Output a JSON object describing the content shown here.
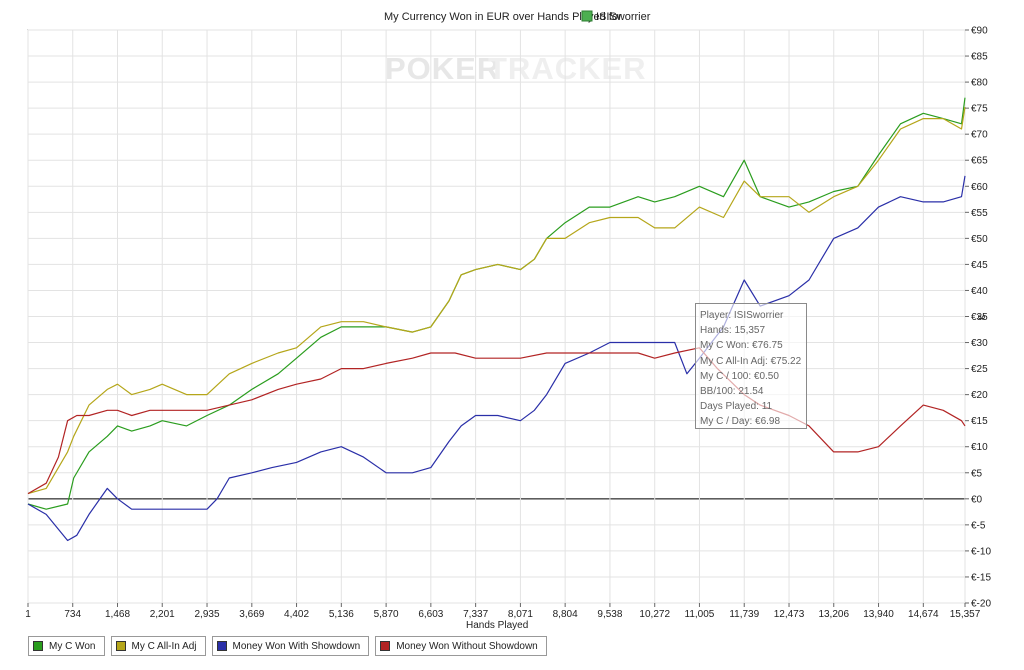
{
  "chart_data": {
    "type": "line",
    "title": "My Currency Won in EUR over Hands Played for",
    "player": "ISISworrier",
    "xlabel": "Hands Played",
    "ylabel": "€",
    "watermark": {
      "part1": "POKER",
      "part2": "TRACKER"
    },
    "xlim": [
      1,
      15357
    ],
    "ylim": [
      -20,
      90
    ],
    "x_ticks": [
      "1",
      "734",
      "1,468",
      "2,201",
      "2,935",
      "3,669",
      "4,402",
      "5,136",
      "5,870",
      "6,603",
      "7,337",
      "8,071",
      "8,804",
      "9,538",
      "10,272",
      "11,005",
      "11,739",
      "12,473",
      "13,206",
      "13,940",
      "14,674",
      "15,357"
    ],
    "y_ticks": [
      "€90",
      "€85",
      "€80",
      "€75",
      "€70",
      "€65",
      "€60",
      "€55",
      "€50",
      "€45",
      "€40",
      "€35",
      "€30",
      "€25",
      "€20",
      "€15",
      "€10",
      "€5",
      "€0",
      "€-5",
      "€-10",
      "€-15",
      "€-20"
    ],
    "grid": true,
    "legend_position": "bottom",
    "series": [
      {
        "name": "My C Won",
        "color": "#2a9d1e",
        "points": [
          [
            1,
            -1
          ],
          [
            300,
            -2
          ],
          [
            650,
            -1
          ],
          [
            750,
            4
          ],
          [
            1000,
            9
          ],
          [
            1300,
            12
          ],
          [
            1468,
            14
          ],
          [
            1700,
            13
          ],
          [
            2000,
            14
          ],
          [
            2201,
            15
          ],
          [
            2600,
            14
          ],
          [
            2935,
            16
          ],
          [
            3300,
            18
          ],
          [
            3669,
            21
          ],
          [
            4100,
            24
          ],
          [
            4402,
            27
          ],
          [
            4800,
            31
          ],
          [
            5136,
            33
          ],
          [
            5500,
            33
          ],
          [
            5870,
            33
          ],
          [
            6300,
            32
          ],
          [
            6603,
            33
          ],
          [
            6900,
            38
          ],
          [
            7100,
            43
          ],
          [
            7337,
            44
          ],
          [
            7700,
            45
          ],
          [
            8071,
            44
          ],
          [
            8300,
            46
          ],
          [
            8500,
            50
          ],
          [
            8804,
            53
          ],
          [
            9200,
            56
          ],
          [
            9538,
            56
          ],
          [
            10000,
            58
          ],
          [
            10272,
            57
          ],
          [
            10600,
            58
          ],
          [
            11005,
            60
          ],
          [
            11400,
            58
          ],
          [
            11739,
            65
          ],
          [
            12000,
            58
          ],
          [
            12473,
            56
          ],
          [
            12800,
            57
          ],
          [
            13206,
            59
          ],
          [
            13600,
            60
          ],
          [
            13940,
            66
          ],
          [
            14300,
            72
          ],
          [
            14674,
            74
          ],
          [
            15000,
            73
          ],
          [
            15300,
            72
          ],
          [
            15357,
            77
          ]
        ]
      },
      {
        "name": "My C All-In Adj",
        "color": "#b5a61a",
        "points": [
          [
            1,
            1
          ],
          [
            300,
            2
          ],
          [
            650,
            9
          ],
          [
            750,
            12
          ],
          [
            1000,
            18
          ],
          [
            1300,
            21
          ],
          [
            1468,
            22
          ],
          [
            1700,
            20
          ],
          [
            2000,
            21
          ],
          [
            2201,
            22
          ],
          [
            2600,
            20
          ],
          [
            2935,
            20
          ],
          [
            3300,
            24
          ],
          [
            3669,
            26
          ],
          [
            4100,
            28
          ],
          [
            4402,
            29
          ],
          [
            4800,
            33
          ],
          [
            5136,
            34
          ],
          [
            5500,
            34
          ],
          [
            5870,
            33
          ],
          [
            6300,
            32
          ],
          [
            6603,
            33
          ],
          [
            6900,
            38
          ],
          [
            7100,
            43
          ],
          [
            7337,
            44
          ],
          [
            7700,
            45
          ],
          [
            8071,
            44
          ],
          [
            8300,
            46
          ],
          [
            8500,
            50
          ],
          [
            8804,
            50
          ],
          [
            9200,
            53
          ],
          [
            9538,
            54
          ],
          [
            10000,
            54
          ],
          [
            10272,
            52
          ],
          [
            10600,
            52
          ],
          [
            11005,
            56
          ],
          [
            11400,
            54
          ],
          [
            11739,
            61
          ],
          [
            12000,
            58
          ],
          [
            12473,
            58
          ],
          [
            12800,
            55
          ],
          [
            13206,
            58
          ],
          [
            13600,
            60
          ],
          [
            13940,
            65
          ],
          [
            14300,
            71
          ],
          [
            14674,
            73
          ],
          [
            15000,
            73
          ],
          [
            15300,
            71
          ],
          [
            15357,
            75.22
          ]
        ]
      },
      {
        "name": "Money Won With Showdown",
        "color": "#2a2fa8",
        "points": [
          [
            1,
            -1
          ],
          [
            300,
            -3
          ],
          [
            650,
            -8
          ],
          [
            800,
            -7
          ],
          [
            1000,
            -3
          ],
          [
            1300,
            2
          ],
          [
            1468,
            0
          ],
          [
            1700,
            -2
          ],
          [
            2000,
            -2
          ],
          [
            2201,
            -2
          ],
          [
            2600,
            -2
          ],
          [
            2935,
            -2
          ],
          [
            3100,
            0
          ],
          [
            3300,
            4
          ],
          [
            3669,
            5
          ],
          [
            4000,
            6
          ],
          [
            4402,
            7
          ],
          [
            4800,
            9
          ],
          [
            5136,
            10
          ],
          [
            5500,
            8
          ],
          [
            5870,
            5
          ],
          [
            6300,
            5
          ],
          [
            6603,
            6
          ],
          [
            6900,
            11
          ],
          [
            7100,
            14
          ],
          [
            7337,
            16
          ],
          [
            7700,
            16
          ],
          [
            8071,
            15
          ],
          [
            8300,
            17
          ],
          [
            8500,
            20
          ],
          [
            8804,
            26
          ],
          [
            9200,
            28
          ],
          [
            9538,
            30
          ],
          [
            10000,
            30
          ],
          [
            10272,
            30
          ],
          [
            10600,
            30
          ],
          [
            10800,
            24
          ],
          [
            11005,
            27
          ],
          [
            11400,
            33
          ],
          [
            11739,
            42
          ],
          [
            12000,
            37
          ],
          [
            12473,
            39
          ],
          [
            12800,
            42
          ],
          [
            13206,
            50
          ],
          [
            13600,
            52
          ],
          [
            13940,
            56
          ],
          [
            14300,
            58
          ],
          [
            14674,
            57
          ],
          [
            15000,
            57
          ],
          [
            15300,
            58
          ],
          [
            15357,
            62
          ]
        ]
      },
      {
        "name": "Money Won Without Showdown",
        "color": "#b22424",
        "points": [
          [
            1,
            1
          ],
          [
            300,
            3
          ],
          [
            500,
            8
          ],
          [
            650,
            15
          ],
          [
            800,
            16
          ],
          [
            1000,
            16
          ],
          [
            1300,
            17
          ],
          [
            1468,
            17
          ],
          [
            1700,
            16
          ],
          [
            2000,
            17
          ],
          [
            2201,
            17
          ],
          [
            2600,
            17
          ],
          [
            2935,
            17
          ],
          [
            3300,
            18
          ],
          [
            3669,
            19
          ],
          [
            4100,
            21
          ],
          [
            4402,
            22
          ],
          [
            4800,
            23
          ],
          [
            5136,
            25
          ],
          [
            5500,
            25
          ],
          [
            5870,
            26
          ],
          [
            6300,
            27
          ],
          [
            6603,
            28
          ],
          [
            7000,
            28
          ],
          [
            7337,
            27
          ],
          [
            7700,
            27
          ],
          [
            8071,
            27
          ],
          [
            8500,
            28
          ],
          [
            8804,
            28
          ],
          [
            9200,
            28
          ],
          [
            9538,
            28
          ],
          [
            10000,
            28
          ],
          [
            10272,
            27
          ],
          [
            10600,
            28
          ],
          [
            11005,
            29
          ],
          [
            11300,
            25
          ],
          [
            11739,
            20
          ],
          [
            12000,
            18
          ],
          [
            12473,
            16
          ],
          [
            12800,
            14
          ],
          [
            13206,
            9
          ],
          [
            13600,
            9
          ],
          [
            13940,
            10
          ],
          [
            14300,
            14
          ],
          [
            14674,
            18
          ],
          [
            15000,
            17
          ],
          [
            15300,
            15
          ],
          [
            15357,
            14
          ]
        ]
      }
    ]
  },
  "tooltip": {
    "lines": [
      "Player: ISISworrier",
      "Hands: 15,357",
      "My C Won: €76.75",
      "My C All-In Adj: €75.22",
      "My C / 100: €0.50",
      "BB/100: 21.54",
      "Days Played: 11",
      "My C / Day: €6.98"
    ]
  },
  "legend": [
    {
      "label": "My C Won",
      "color": "#2a9d1e"
    },
    {
      "label": "My C All-In Adj",
      "color": "#b5a61a"
    },
    {
      "label": "Money Won With Showdown",
      "color": "#2a2fa8"
    },
    {
      "label": "Money Won Without Showdown",
      "color": "#b22424"
    }
  ]
}
